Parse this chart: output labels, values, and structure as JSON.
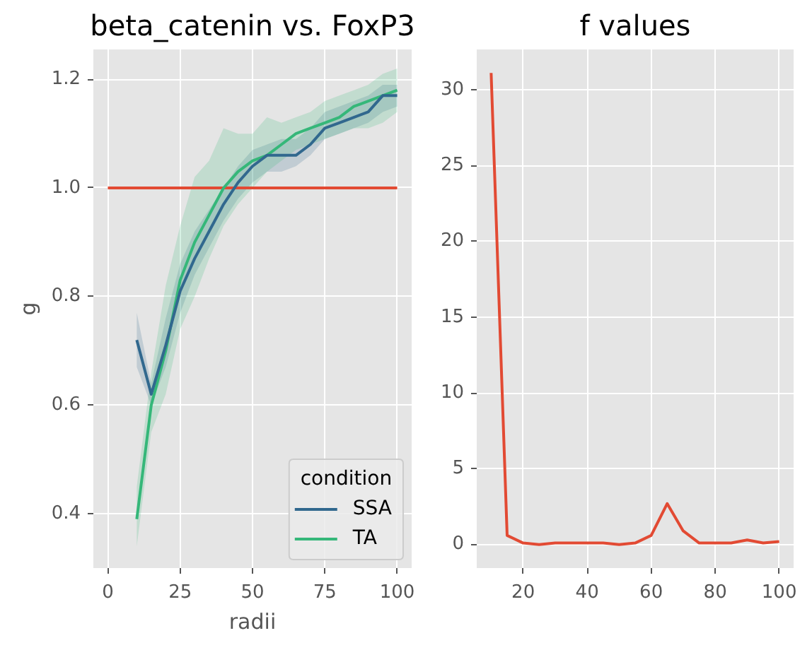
{
  "chart_data": [
    {
      "type": "line",
      "title": "beta_catenin vs. FoxP3",
      "xlabel": "radii",
      "ylabel": "g",
      "legend_title": "condition",
      "legend": "bottom right",
      "grid": true,
      "x": [
        10,
        15,
        20,
        25,
        30,
        35,
        40,
        45,
        50,
        55,
        60,
        65,
        70,
        75,
        80,
        85,
        90,
        95,
        100
      ],
      "xlim": [
        -5,
        105
      ],
      "xticks": [
        0,
        25,
        50,
        75,
        100
      ],
      "ylim": [
        0.3,
        1.255
      ],
      "yticks": [
        0.4,
        0.6,
        0.8,
        {
          "value": 1.0,
          "label": "1.0"
        },
        1.2
      ],
      "series": [
        {
          "name": "SSA",
          "color": "#31688e",
          "values": [
            0.72,
            0.62,
            0.71,
            0.81,
            0.87,
            0.92,
            0.97,
            1.01,
            1.04,
            1.06,
            1.06,
            1.06,
            1.08,
            1.11,
            1.12,
            1.13,
            1.14,
            1.17,
            1.17
          ],
          "lower": [
            0.67,
            0.6,
            0.67,
            0.77,
            0.84,
            0.89,
            0.94,
            0.98,
            1.01,
            1.03,
            1.03,
            1.04,
            1.06,
            1.09,
            1.1,
            1.11,
            1.12,
            1.14,
            1.15
          ],
          "upper": [
            0.77,
            0.64,
            0.76,
            0.86,
            0.92,
            0.96,
            1.0,
            1.04,
            1.07,
            1.08,
            1.09,
            1.09,
            1.11,
            1.14,
            1.15,
            1.16,
            1.17,
            1.19,
            1.19
          ]
        },
        {
          "name": "TA",
          "color": "#35b779",
          "values": [
            0.39,
            0.6,
            0.7,
            0.83,
            0.9,
            0.95,
            1.0,
            1.03,
            1.05,
            1.06,
            1.08,
            1.1,
            1.11,
            1.12,
            1.13,
            1.15,
            1.16,
            1.17,
            1.18
          ],
          "lower": [
            0.34,
            0.55,
            0.62,
            0.74,
            0.8,
            0.87,
            0.93,
            0.97,
            1.0,
            1.03,
            1.05,
            1.07,
            1.08,
            1.09,
            1.1,
            1.11,
            1.11,
            1.12,
            1.14
          ],
          "upper": [
            0.45,
            0.66,
            0.82,
            0.93,
            1.02,
            1.05,
            1.11,
            1.1,
            1.1,
            1.13,
            1.12,
            1.13,
            1.14,
            1.16,
            1.17,
            1.18,
            1.19,
            1.21,
            1.22
          ]
        },
        {
          "color": "#e24a33",
          "x": [
            0,
            100
          ],
          "values": [
            1,
            1
          ]
        }
      ]
    },
    {
      "type": "line",
      "title": "f values",
      "grid": true,
      "x": [
        10,
        15,
        20,
        25,
        30,
        35,
        40,
        45,
        50,
        55,
        60,
        65,
        70,
        75,
        80,
        85,
        90,
        95,
        100
      ],
      "xlim": [
        5.5,
        104.5
      ],
      "xticks": [
        20,
        40,
        60,
        80,
        100
      ],
      "ylim": [
        -1.55,
        32.65
      ],
      "yticks": [
        0,
        5,
        10,
        15,
        20,
        25,
        30
      ],
      "series": [
        {
          "color": "#e24a33",
          "values": [
            31.1,
            0.6,
            0.1,
            0.0,
            0.1,
            0.1,
            0.1,
            0.1,
            0.0,
            0.1,
            0.6,
            2.7,
            0.9,
            0.1,
            0.1,
            0.1,
            0.3,
            0.1,
            0.2
          ]
        }
      ]
    }
  ]
}
